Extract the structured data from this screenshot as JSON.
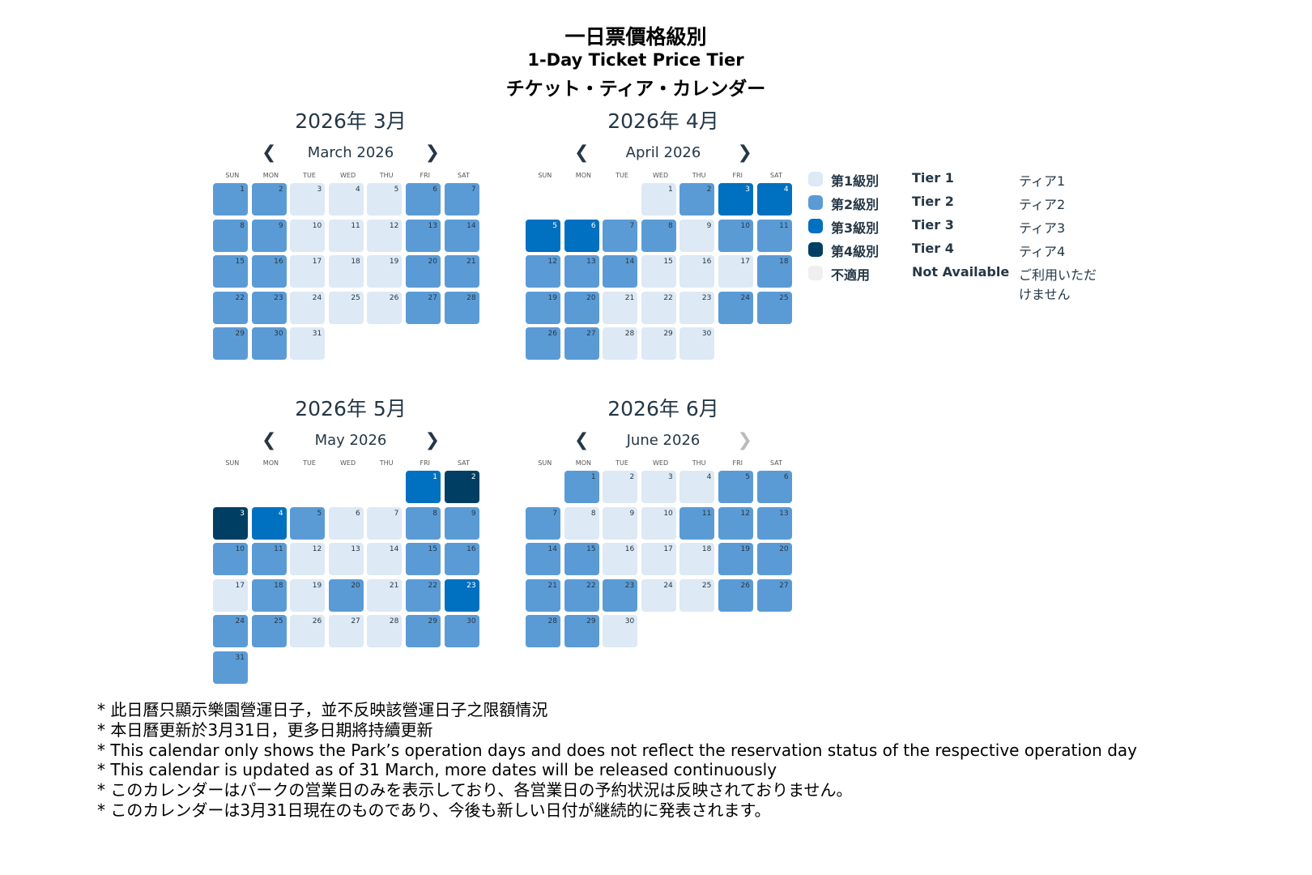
{
  "title": {
    "zh": "一日票價格級別",
    "en": "1-Day Ticket Price Tier",
    "ja": "チケット・ティア・カレンダー"
  },
  "colors": {
    "tier1": "#dde9f5",
    "tier2": "#5b9bd5",
    "tier3": "#0070c0",
    "tier4": "#003f63",
    "na": "#efefef",
    "text": "#253746"
  },
  "weekdays": [
    "SUN",
    "MON",
    "TUE",
    "WED",
    "THU",
    "FRI",
    "SAT"
  ],
  "nav_icons": {
    "prev": "chevron-left-icon",
    "next": "chevron-right-icon"
  },
  "months": [
    {
      "heading": "2026年 3月",
      "nav_label": "March 2026",
      "start_weekday": 0,
      "next_enabled": true,
      "tiers": [
        2,
        2,
        1,
        1,
        1,
        2,
        2,
        2,
        2,
        1,
        1,
        1,
        2,
        2,
        2,
        2,
        1,
        1,
        1,
        2,
        2,
        2,
        2,
        1,
        1,
        1,
        2,
        2,
        2,
        2,
        1
      ]
    },
    {
      "heading": "2026年 4月",
      "nav_label": "April 2026",
      "start_weekday": 3,
      "next_enabled": true,
      "tiers": [
        1,
        2,
        3,
        3,
        3,
        3,
        2,
        2,
        1,
        2,
        2,
        2,
        2,
        2,
        1,
        1,
        1,
        2,
        2,
        2,
        1,
        1,
        1,
        2,
        2,
        2,
        2,
        1,
        1,
        1
      ]
    },
    {
      "heading": "2026年 5月",
      "nav_label": "May 2026",
      "start_weekday": 5,
      "next_enabled": true,
      "tiers": [
        3,
        4,
        4,
        3,
        2,
        1,
        1,
        2,
        2,
        2,
        2,
        1,
        1,
        1,
        2,
        2,
        1,
        2,
        1,
        2,
        1,
        2,
        3,
        2,
        2,
        1,
        1,
        1,
        2,
        2,
        2
      ]
    },
    {
      "heading": "2026年 6月",
      "nav_label": "June 2026",
      "start_weekday": 1,
      "next_enabled": false,
      "tiers": [
        2,
        1,
        1,
        1,
        2,
        2,
        2,
        1,
        1,
        1,
        2,
        2,
        2,
        2,
        2,
        1,
        1,
        1,
        2,
        2,
        2,
        2,
        2,
        1,
        1,
        2,
        2,
        2,
        2,
        1
      ]
    }
  ],
  "legend": [
    {
      "key": "tier1",
      "zh": "第1級別",
      "en": "Tier 1",
      "ja": "ティア1"
    },
    {
      "key": "tier2",
      "zh": "第2級別",
      "en": "Tier 2",
      "ja": "ティア2"
    },
    {
      "key": "tier3",
      "zh": "第3級別",
      "en": "Tier 3",
      "ja": "ティア3"
    },
    {
      "key": "tier4",
      "zh": "第4級別",
      "en": "Tier 4",
      "ja": "ティア4"
    },
    {
      "key": "na",
      "zh": "不適用",
      "en": "Not Available",
      "ja": "ご利用いただけません"
    }
  ],
  "notes": [
    "* 此日曆只顯示樂園營運日子，並不反映該營運日子之限額情況",
    "* 本日曆更新於3月31日，更多日期將持續更新",
    "* This calendar only shows the Park’s operation days and does not reflect the reservation status of the respective operation day",
    "* This calendar is updated as of 31 March, more dates will be released continuously",
    "* このカレンダーはパークの営業日のみを表示しており、各営業日の予約状況は反映されておりません。",
    "* このカレンダーは3月31日現在のものであり、今後も新しい日付が継続的に発表されます。"
  ]
}
